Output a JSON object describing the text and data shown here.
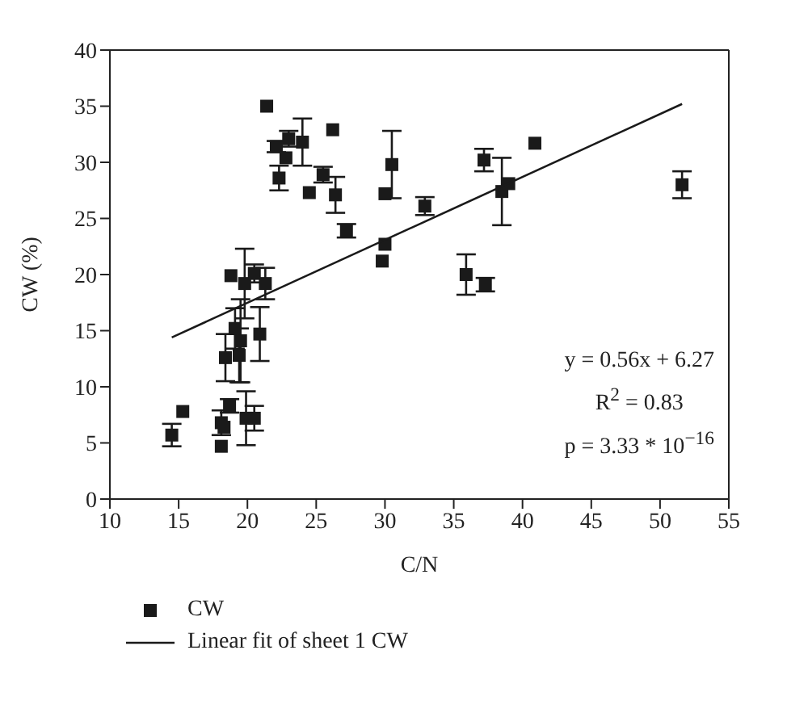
{
  "chart_data": {
    "type": "scatter",
    "xlabel": "C/N",
    "ylabel": "CW (%)",
    "xlim": [
      10,
      55
    ],
    "xticks": [
      10,
      15,
      20,
      25,
      30,
      35,
      40,
      45,
      50,
      55
    ],
    "ylim": [
      0,
      40
    ],
    "yticks": [
      0,
      5,
      10,
      15,
      20,
      25,
      30,
      35,
      40
    ],
    "grid": false,
    "legend": "bottom left",
    "marker": "square",
    "annotations": [
      "y = 0.56x + 6.27",
      "R$^{2}$ = 0.83",
      "p = 3.33 * 10$^{−16}$"
    ],
    "series": [
      {
        "name": "CW",
        "type": "scatter",
        "color": "#1a1a1a",
        "x": [
          14.5,
          15.3,
          18.1,
          18.1,
          18.3,
          18.4,
          18.7,
          18.8,
          19.1,
          19.4,
          19.5,
          19.8,
          19.9,
          20.5,
          20.5,
          20.9,
          21.3,
          21.4,
          22.1,
          22.3,
          22.8,
          23.0,
          24.0,
          24.5,
          25.5,
          26.2,
          26.4,
          27.2,
          29.8,
          30.0,
          30.0,
          30.5,
          32.9,
          35.9,
          37.2,
          37.3,
          38.5,
          39.0,
          40.9,
          51.6
        ],
        "values": [
          5.7,
          7.8,
          4.7,
          6.8,
          6.4,
          12.6,
          8.3,
          19.9,
          15.2,
          12.8,
          14.1,
          19.2,
          7.2,
          7.2,
          20.1,
          14.7,
          19.2,
          35.0,
          31.4,
          28.6,
          30.4,
          32.1,
          31.8,
          27.3,
          28.9,
          32.9,
          27.1,
          23.9,
          21.2,
          22.7,
          27.2,
          29.8,
          26.1,
          20.0,
          30.2,
          19.1,
          27.4,
          28.1,
          31.7,
          28.0
        ],
        "errors": [
          1.0,
          null,
          null,
          1.1,
          null,
          2.1,
          0.6,
          null,
          1.8,
          2.4,
          3.7,
          3.1,
          2.4,
          1.1,
          0.8,
          2.4,
          1.4,
          null,
          0.5,
          1.1,
          null,
          0.7,
          2.1,
          null,
          0.7,
          null,
          1.6,
          0.6,
          null,
          null,
          null,
          3.0,
          0.8,
          1.8,
          1.0,
          0.6,
          3.0,
          null,
          null,
          1.2
        ]
      },
      {
        "name": "Linear fit of sheet 1 CW",
        "type": "line",
        "color": "#1a1a1a",
        "marker": "none",
        "line_style": "solid",
        "x": [
          14.5,
          51.6
        ],
        "values": [
          14.4,
          35.2
        ]
      }
    ]
  }
}
